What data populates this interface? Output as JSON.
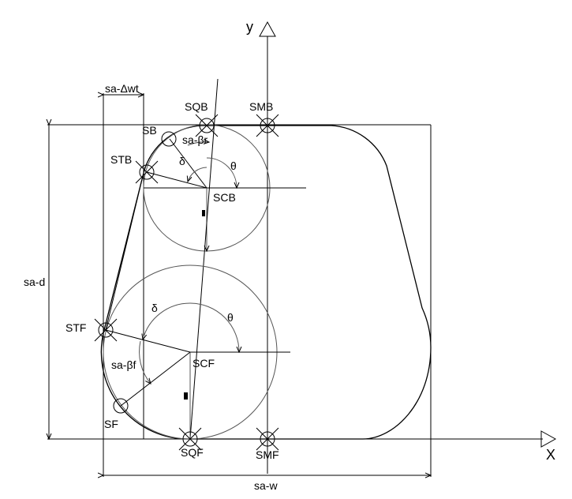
{
  "axes": {
    "x_label": "X",
    "y_label": "y"
  },
  "dimensions": {
    "width": "sa-w",
    "depth": "sa-d",
    "delta_wt": "sa-Δwt",
    "beta_r": "sa-βr",
    "beta_f": "sa-βf"
  },
  "points": {
    "sqb": "SQB",
    "smb": "SMB",
    "sb": "SB",
    "stb": "STB",
    "scb": "SCB",
    "stf": "STF",
    "scf": "SCF",
    "sf": "SF",
    "sqf": "SQF",
    "smf": "SMF"
  },
  "angles": {
    "delta_top": "δ",
    "theta_top": "θ",
    "delta_bottom": "δ",
    "theta_bottom": "θ"
  }
}
